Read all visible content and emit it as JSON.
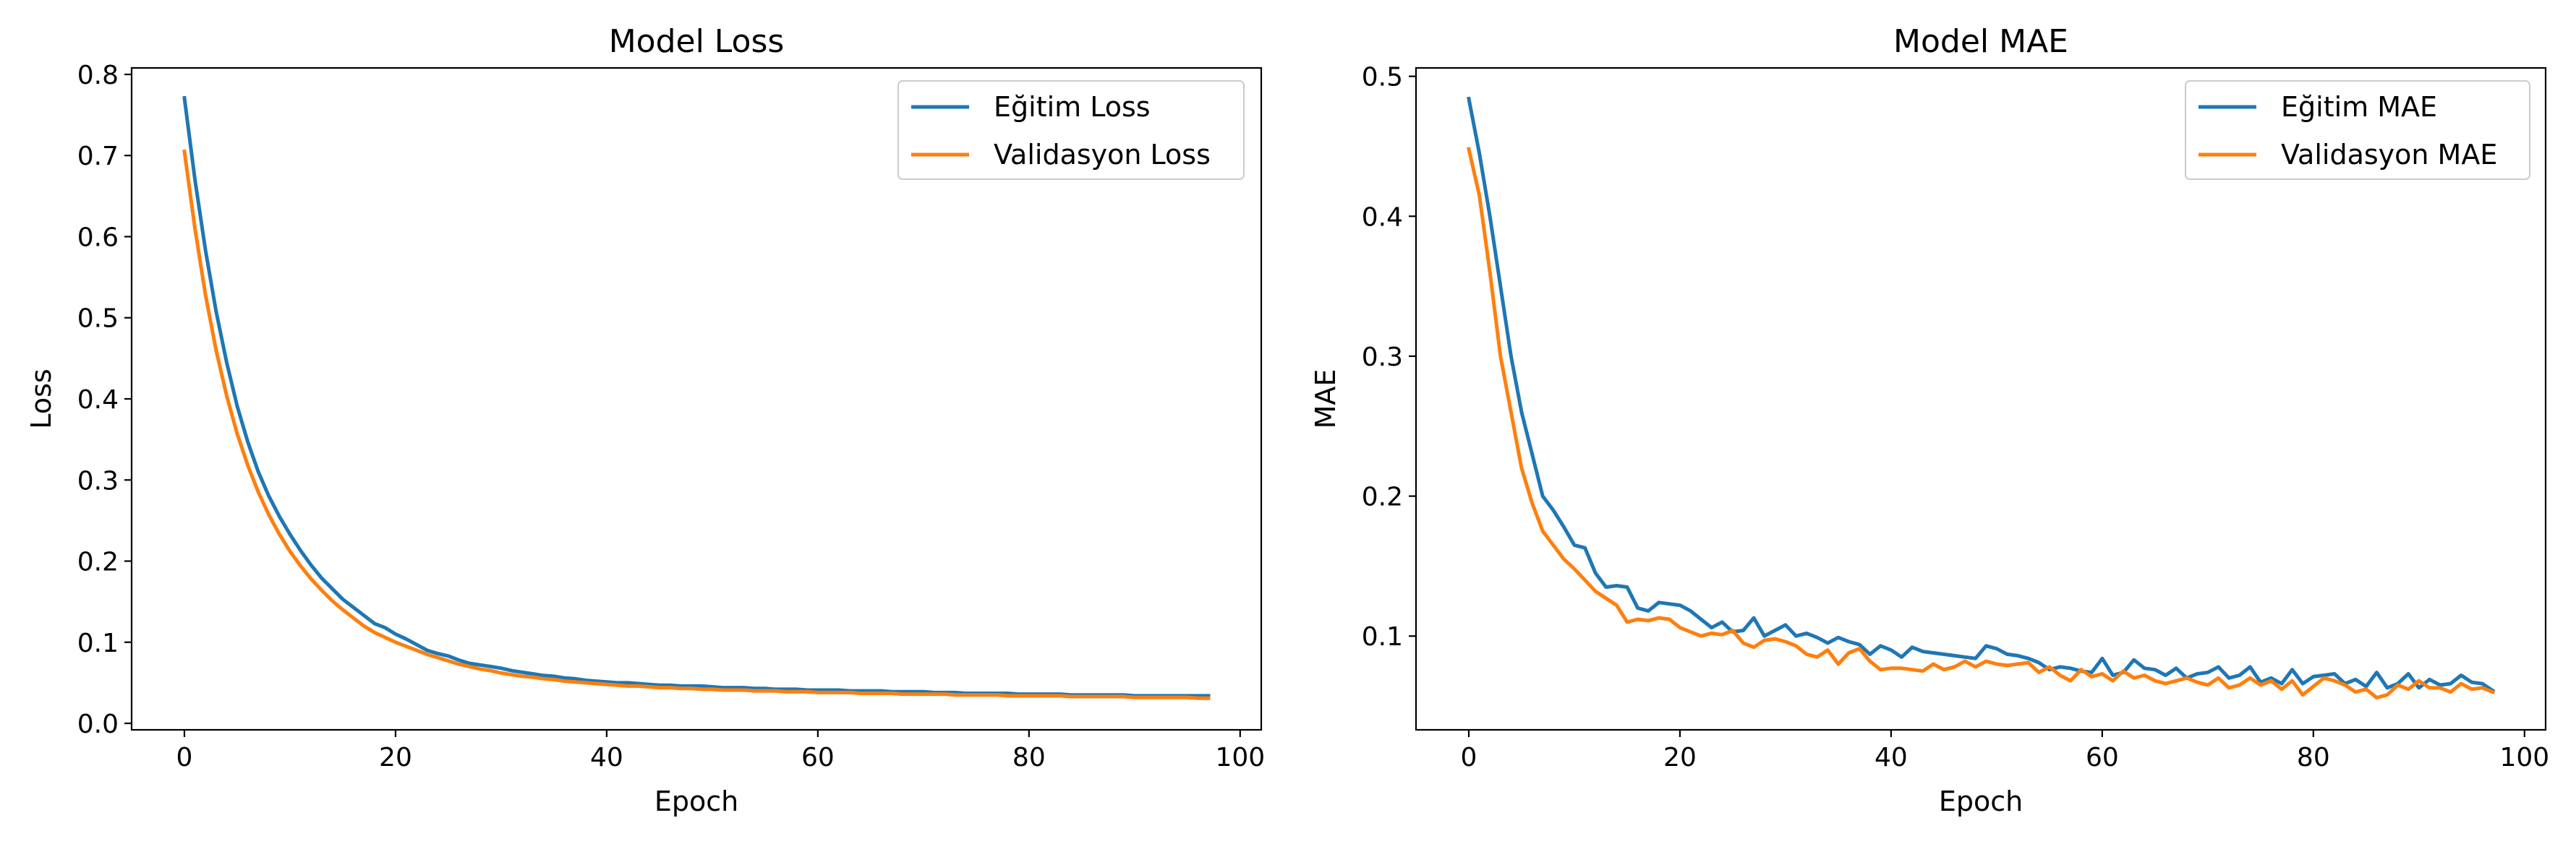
{
  "colors": {
    "train": "#1f77b4",
    "validation": "#ff7f0e"
  },
  "chart_data": [
    {
      "type": "line",
      "title": "Model Loss",
      "xlabel": "Epoch",
      "ylabel": "Loss",
      "xlim": [
        -5,
        102
      ],
      "ylim": [
        -0.008,
        0.808
      ],
      "xticks": [
        0,
        20,
        40,
        60,
        80,
        100
      ],
      "yticks": [
        0.0,
        0.1,
        0.2,
        0.3,
        0.4,
        0.5,
        0.6,
        0.7,
        0.8
      ],
      "legend_position": "top-right",
      "x": [
        0,
        1,
        2,
        3,
        4,
        5,
        6,
        7,
        8,
        9,
        10,
        11,
        12,
        13,
        14,
        15,
        16,
        17,
        18,
        19,
        20,
        21,
        22,
        23,
        24,
        25,
        26,
        27,
        28,
        29,
        30,
        31,
        32,
        33,
        34,
        35,
        36,
        37,
        38,
        39,
        40,
        41,
        42,
        43,
        44,
        45,
        46,
        47,
        48,
        49,
        50,
        51,
        52,
        53,
        54,
        55,
        56,
        57,
        58,
        59,
        60,
        61,
        62,
        63,
        64,
        65,
        66,
        67,
        68,
        69,
        70,
        71,
        72,
        73,
        74,
        75,
        76,
        77,
        78,
        79,
        80,
        81,
        82,
        83,
        84,
        85,
        86,
        87,
        88,
        89,
        90,
        91,
        92,
        93,
        94,
        95,
        96,
        97
      ],
      "series": [
        {
          "name": "Eğitim Loss",
          "color": "#1f77b4",
          "values": [
            0.771,
            0.67,
            0.583,
            0.508,
            0.445,
            0.391,
            0.347,
            0.31,
            0.28,
            0.255,
            0.233,
            0.213,
            0.195,
            0.179,
            0.166,
            0.153,
            0.143,
            0.133,
            0.123,
            0.118,
            0.11,
            0.104,
            0.097,
            0.09,
            0.086,
            0.083,
            0.078,
            0.074,
            0.072,
            0.07,
            0.068,
            0.065,
            0.063,
            0.061,
            0.059,
            0.058,
            0.056,
            0.055,
            0.053,
            0.052,
            0.051,
            0.05,
            0.05,
            0.049,
            0.048,
            0.047,
            0.047,
            0.046,
            0.046,
            0.046,
            0.045,
            0.044,
            0.044,
            0.044,
            0.043,
            0.043,
            0.042,
            0.042,
            0.042,
            0.041,
            0.041,
            0.041,
            0.041,
            0.04,
            0.04,
            0.04,
            0.04,
            0.039,
            0.039,
            0.039,
            0.039,
            0.038,
            0.038,
            0.038,
            0.037,
            0.037,
            0.037,
            0.037,
            0.037,
            0.036,
            0.036,
            0.036,
            0.036,
            0.036,
            0.035,
            0.035,
            0.035,
            0.035,
            0.035,
            0.035,
            0.034,
            0.034,
            0.034,
            0.034,
            0.034,
            0.034,
            0.034,
            0.034
          ]
        },
        {
          "name": "Validasyon Loss",
          "color": "#ff7f0e",
          "values": [
            0.705,
            0.61,
            0.528,
            0.46,
            0.404,
            0.357,
            0.318,
            0.285,
            0.257,
            0.233,
            0.212,
            0.194,
            0.178,
            0.164,
            0.151,
            0.14,
            0.13,
            0.12,
            0.112,
            0.106,
            0.1,
            0.095,
            0.09,
            0.085,
            0.081,
            0.077,
            0.073,
            0.07,
            0.067,
            0.065,
            0.062,
            0.06,
            0.058,
            0.057,
            0.055,
            0.054,
            0.052,
            0.051,
            0.05,
            0.049,
            0.048,
            0.047,
            0.046,
            0.046,
            0.045,
            0.044,
            0.044,
            0.043,
            0.043,
            0.042,
            0.042,
            0.041,
            0.041,
            0.041,
            0.04,
            0.04,
            0.04,
            0.039,
            0.039,
            0.039,
            0.038,
            0.038,
            0.038,
            0.038,
            0.037,
            0.037,
            0.037,
            0.037,
            0.036,
            0.036,
            0.036,
            0.036,
            0.036,
            0.035,
            0.035,
            0.035,
            0.035,
            0.035,
            0.034,
            0.034,
            0.034,
            0.034,
            0.034,
            0.034,
            0.033,
            0.033,
            0.033,
            0.033,
            0.033,
            0.033,
            0.032,
            0.032,
            0.032,
            0.032,
            0.032,
            0.032,
            0.031,
            0.031
          ]
        }
      ]
    },
    {
      "type": "line",
      "title": "Model MAE",
      "xlabel": "Epoch",
      "ylabel": "MAE",
      "xlim": [
        -5,
        102
      ],
      "ylim": [
        0.033,
        0.506
      ],
      "xticks": [
        0,
        20,
        40,
        60,
        80,
        100
      ],
      "yticks": [
        0.1,
        0.2,
        0.3,
        0.4,
        0.5
      ],
      "legend_position": "top-right",
      "x": [
        0,
        1,
        2,
        3,
        4,
        5,
        6,
        7,
        8,
        9,
        10,
        11,
        12,
        13,
        14,
        15,
        16,
        17,
        18,
        19,
        20,
        21,
        22,
        23,
        24,
        25,
        26,
        27,
        28,
        29,
        30,
        31,
        32,
        33,
        34,
        35,
        36,
        37,
        38,
        39,
        40,
        41,
        42,
        43,
        44,
        45,
        46,
        47,
        48,
        49,
        50,
        51,
        52,
        53,
        54,
        55,
        56,
        57,
        58,
        59,
        60,
        61,
        62,
        63,
        64,
        65,
        66,
        67,
        68,
        69,
        70,
        71,
        72,
        73,
        74,
        75,
        76,
        77,
        78,
        79,
        80,
        81,
        82,
        83,
        84,
        85,
        86,
        87,
        88,
        89,
        90,
        91,
        92,
        93,
        94,
        95,
        96,
        97
      ],
      "series": [
        {
          "name": "Eğitim MAE",
          "color": "#1f77b4",
          "values": [
            0.484,
            0.445,
            0.4,
            0.35,
            0.3,
            0.26,
            0.23,
            0.2,
            0.19,
            0.178,
            0.165,
            0.163,
            0.145,
            0.135,
            0.136,
            0.135,
            0.12,
            0.118,
            0.124,
            0.123,
            0.122,
            0.118,
            0.112,
            0.106,
            0.11,
            0.103,
            0.104,
            0.113,
            0.1,
            0.104,
            0.108,
            0.1,
            0.102,
            0.099,
            0.095,
            0.099,
            0.096,
            0.094,
            0.087,
            0.093,
            0.09,
            0.085,
            0.092,
            0.089,
            0.088,
            0.087,
            0.086,
            0.085,
            0.084,
            0.093,
            0.091,
            0.087,
            0.086,
            0.084,
            0.081,
            0.076,
            0.078,
            0.077,
            0.075,
            0.074,
            0.084,
            0.072,
            0.074,
            0.083,
            0.077,
            0.076,
            0.072,
            0.077,
            0.07,
            0.073,
            0.074,
            0.078,
            0.07,
            0.072,
            0.078,
            0.067,
            0.07,
            0.066,
            0.076,
            0.066,
            0.071,
            0.072,
            0.073,
            0.066,
            0.069,
            0.064,
            0.074,
            0.063,
            0.066,
            0.073,
            0.063,
            0.069,
            0.065,
            0.066,
            0.072,
            0.067,
            0.066,
            0.061
          ]
        },
        {
          "name": "Validasyon MAE",
          "color": "#ff7f0e",
          "values": [
            0.448,
            0.415,
            0.36,
            0.3,
            0.26,
            0.22,
            0.195,
            0.175,
            0.165,
            0.155,
            0.148,
            0.14,
            0.132,
            0.127,
            0.122,
            0.11,
            0.112,
            0.111,
            0.113,
            0.112,
            0.106,
            0.103,
            0.1,
            0.102,
            0.101,
            0.104,
            0.095,
            0.092,
            0.097,
            0.098,
            0.096,
            0.093,
            0.087,
            0.085,
            0.09,
            0.08,
            0.088,
            0.091,
            0.082,
            0.076,
            0.077,
            0.077,
            0.076,
            0.075,
            0.08,
            0.076,
            0.078,
            0.082,
            0.078,
            0.082,
            0.08,
            0.079,
            0.08,
            0.081,
            0.074,
            0.078,
            0.072,
            0.068,
            0.076,
            0.071,
            0.073,
            0.068,
            0.075,
            0.07,
            0.072,
            0.068,
            0.066,
            0.068,
            0.07,
            0.067,
            0.065,
            0.07,
            0.063,
            0.065,
            0.07,
            0.065,
            0.068,
            0.062,
            0.068,
            0.058,
            0.064,
            0.07,
            0.068,
            0.065,
            0.06,
            0.062,
            0.056,
            0.058,
            0.065,
            0.062,
            0.068,
            0.063,
            0.063,
            0.06,
            0.066,
            0.062,
            0.063,
            0.06
          ]
        }
      ]
    }
  ]
}
